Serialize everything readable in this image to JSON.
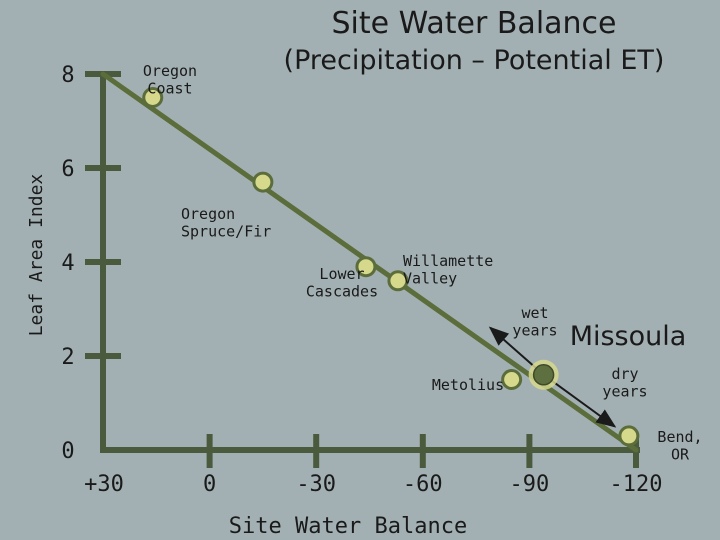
{
  "chart_data": {
    "type": "scatter",
    "title": "Site Water Balance",
    "subtitle": "(Precipitation – Potential ET)",
    "xlabel": "Site Water Balance",
    "ylabel": "Leaf Area Index",
    "x_ticks": [
      "+30",
      "0",
      "-30",
      "-60",
      "-90",
      "-120"
    ],
    "x_tick_values": [
      30,
      0,
      -30,
      -60,
      -90,
      -120
    ],
    "y_ticks": [
      "0",
      "2",
      "4",
      "6",
      "8"
    ],
    "y_tick_values": [
      0,
      2,
      4,
      6,
      8
    ],
    "xlim": [
      30,
      -120
    ],
    "ylim": [
      0,
      8
    ],
    "trend_line": {
      "from": [
        30,
        8
      ],
      "to": [
        -120,
        0
      ]
    },
    "points": [
      {
        "label": "Oregon\nCoast",
        "x": 16,
        "y": 7.5
      },
      {
        "label": "Oregon\nSpruce/Fir",
        "x": -15,
        "y": 5.7
      },
      {
        "label": "Lower\nCascades",
        "x": -44,
        "y": 3.9
      },
      {
        "label": "Willamette\nValley",
        "x": -53,
        "y": 3.6
      },
      {
        "label": "Metolius",
        "x": -85,
        "y": 1.5
      },
      {
        "label": "Missoula",
        "x": -94,
        "y": 1.6,
        "highlight": true
      },
      {
        "label": "Bend,\nOR",
        "x": -118,
        "y": 0.3
      }
    ],
    "annotations": [
      {
        "text": "wet\nyears",
        "arrow_from": [
          -94,
          1.6
        ],
        "arrow_to": [
          -79,
          2.6
        ]
      },
      {
        "text": "dry\nyears",
        "arrow_from": [
          -94,
          1.6
        ],
        "arrow_to": [
          -114,
          0.5
        ]
      }
    ],
    "grid": false,
    "colors": {
      "background": "#a3b0b3",
      "axis": "#4a5a3c",
      "trend_line": "#5b6d3a",
      "point_fill": "#d6d88c",
      "point_stroke": "#5b6d3a",
      "highlight_fill": "#5f7040",
      "arrow": "#1a1a1a"
    }
  }
}
